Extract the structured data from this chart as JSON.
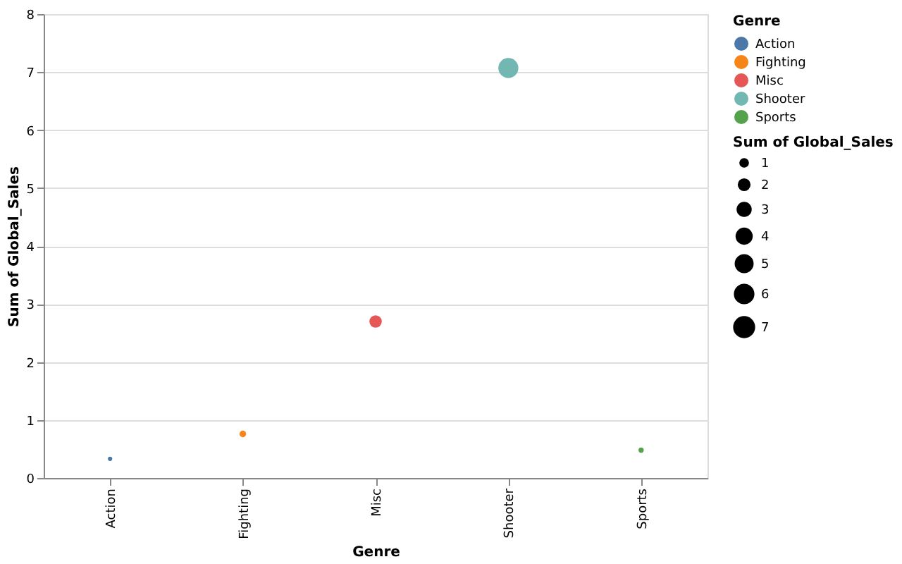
{
  "chart_data": {
    "type": "bubble",
    "xlabel": "Genre",
    "ylabel": "Sum of Global_Sales",
    "legend_title": "Genre",
    "categories": [
      "Action",
      "Fighting",
      "Misc",
      "Shooter",
      "Sports"
    ],
    "series": [
      {
        "name": "Action",
        "color": "#4c78a8",
        "x": [
          "Action"
        ],
        "values": [
          0.33
        ],
        "sizes": [
          0.33
        ]
      },
      {
        "name": "Fighting",
        "color": "#f58518",
        "x": [
          "Fighting"
        ],
        "values": [
          0.76
        ],
        "sizes": [
          0.76
        ]
      },
      {
        "name": "Misc",
        "color": "#e45756",
        "x": [
          "Misc"
        ],
        "values": [
          2.7
        ],
        "sizes": [
          2.7
        ]
      },
      {
        "name": "Shooter",
        "color": "#72b7b2",
        "x": [
          "Shooter"
        ],
        "values": [
          7.07
        ],
        "sizes": [
          7.07
        ]
      },
      {
        "name": "Sports",
        "color": "#54a24b",
        "x": [
          "Sports"
        ],
        "values": [
          0.48
        ],
        "sizes": [
          0.48
        ]
      }
    ],
    "size_legend": [
      1,
      2,
      3,
      4,
      5,
      6,
      7
    ],
    "ylim": [
      0,
      8
    ],
    "yticks": [
      0,
      1,
      2,
      3,
      4,
      5,
      6,
      7,
      8
    ],
    "grid": "y",
    "legend": "top right"
  }
}
